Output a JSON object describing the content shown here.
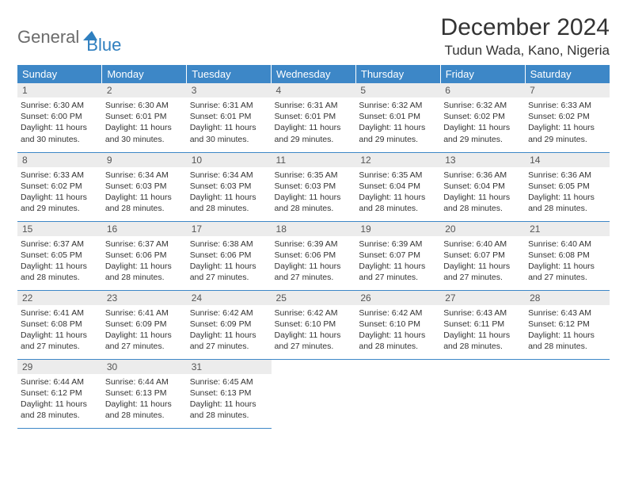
{
  "logo": {
    "part1": "General",
    "part2": "Blue"
  },
  "title": "December 2024",
  "location": "Tudun Wada, Kano, Nigeria",
  "colors": {
    "header_bg": "#3d87c7",
    "header_text": "#ffffff",
    "daynum_bg": "#ececec",
    "border": "#3d87c7",
    "logo_gray": "#6b6b6b",
    "logo_blue": "#2f7fbf"
  },
  "typography": {
    "title_fontsize": 30,
    "location_fontsize": 17,
    "dow_fontsize": 13,
    "daynum_fontsize": 12,
    "body_fontsize": 10.5
  },
  "days_of_week": [
    "Sunday",
    "Monday",
    "Tuesday",
    "Wednesday",
    "Thursday",
    "Friday",
    "Saturday"
  ],
  "weeks": [
    [
      {
        "n": "1",
        "sunrise": "6:30 AM",
        "sunset": "6:00 PM",
        "daylight": "11 hours and 30 minutes."
      },
      {
        "n": "2",
        "sunrise": "6:30 AM",
        "sunset": "6:01 PM",
        "daylight": "11 hours and 30 minutes."
      },
      {
        "n": "3",
        "sunrise": "6:31 AM",
        "sunset": "6:01 PM",
        "daylight": "11 hours and 30 minutes."
      },
      {
        "n": "4",
        "sunrise": "6:31 AM",
        "sunset": "6:01 PM",
        "daylight": "11 hours and 29 minutes."
      },
      {
        "n": "5",
        "sunrise": "6:32 AM",
        "sunset": "6:01 PM",
        "daylight": "11 hours and 29 minutes."
      },
      {
        "n": "6",
        "sunrise": "6:32 AM",
        "sunset": "6:02 PM",
        "daylight": "11 hours and 29 minutes."
      },
      {
        "n": "7",
        "sunrise": "6:33 AM",
        "sunset": "6:02 PM",
        "daylight": "11 hours and 29 minutes."
      }
    ],
    [
      {
        "n": "8",
        "sunrise": "6:33 AM",
        "sunset": "6:02 PM",
        "daylight": "11 hours and 29 minutes."
      },
      {
        "n": "9",
        "sunrise": "6:34 AM",
        "sunset": "6:03 PM",
        "daylight": "11 hours and 28 minutes."
      },
      {
        "n": "10",
        "sunrise": "6:34 AM",
        "sunset": "6:03 PM",
        "daylight": "11 hours and 28 minutes."
      },
      {
        "n": "11",
        "sunrise": "6:35 AM",
        "sunset": "6:03 PM",
        "daylight": "11 hours and 28 minutes."
      },
      {
        "n": "12",
        "sunrise": "6:35 AM",
        "sunset": "6:04 PM",
        "daylight": "11 hours and 28 minutes."
      },
      {
        "n": "13",
        "sunrise": "6:36 AM",
        "sunset": "6:04 PM",
        "daylight": "11 hours and 28 minutes."
      },
      {
        "n": "14",
        "sunrise": "6:36 AM",
        "sunset": "6:05 PM",
        "daylight": "11 hours and 28 minutes."
      }
    ],
    [
      {
        "n": "15",
        "sunrise": "6:37 AM",
        "sunset": "6:05 PM",
        "daylight": "11 hours and 28 minutes."
      },
      {
        "n": "16",
        "sunrise": "6:37 AM",
        "sunset": "6:06 PM",
        "daylight": "11 hours and 28 minutes."
      },
      {
        "n": "17",
        "sunrise": "6:38 AM",
        "sunset": "6:06 PM",
        "daylight": "11 hours and 27 minutes."
      },
      {
        "n": "18",
        "sunrise": "6:39 AM",
        "sunset": "6:06 PM",
        "daylight": "11 hours and 27 minutes."
      },
      {
        "n": "19",
        "sunrise": "6:39 AM",
        "sunset": "6:07 PM",
        "daylight": "11 hours and 27 minutes."
      },
      {
        "n": "20",
        "sunrise": "6:40 AM",
        "sunset": "6:07 PM",
        "daylight": "11 hours and 27 minutes."
      },
      {
        "n": "21",
        "sunrise": "6:40 AM",
        "sunset": "6:08 PM",
        "daylight": "11 hours and 27 minutes."
      }
    ],
    [
      {
        "n": "22",
        "sunrise": "6:41 AM",
        "sunset": "6:08 PM",
        "daylight": "11 hours and 27 minutes."
      },
      {
        "n": "23",
        "sunrise": "6:41 AM",
        "sunset": "6:09 PM",
        "daylight": "11 hours and 27 minutes."
      },
      {
        "n": "24",
        "sunrise": "6:42 AM",
        "sunset": "6:09 PM",
        "daylight": "11 hours and 27 minutes."
      },
      {
        "n": "25",
        "sunrise": "6:42 AM",
        "sunset": "6:10 PM",
        "daylight": "11 hours and 27 minutes."
      },
      {
        "n": "26",
        "sunrise": "6:42 AM",
        "sunset": "6:10 PM",
        "daylight": "11 hours and 28 minutes."
      },
      {
        "n": "27",
        "sunrise": "6:43 AM",
        "sunset": "6:11 PM",
        "daylight": "11 hours and 28 minutes."
      },
      {
        "n": "28",
        "sunrise": "6:43 AM",
        "sunset": "6:12 PM",
        "daylight": "11 hours and 28 minutes."
      }
    ],
    [
      {
        "n": "29",
        "sunrise": "6:44 AM",
        "sunset": "6:12 PM",
        "daylight": "11 hours and 28 minutes."
      },
      {
        "n": "30",
        "sunrise": "6:44 AM",
        "sunset": "6:13 PM",
        "daylight": "11 hours and 28 minutes."
      },
      {
        "n": "31",
        "sunrise": "6:45 AM",
        "sunset": "6:13 PM",
        "daylight": "11 hours and 28 minutes."
      },
      null,
      null,
      null,
      null
    ]
  ],
  "labels": {
    "sunrise": "Sunrise:",
    "sunset": "Sunset:",
    "daylight": "Daylight:"
  }
}
